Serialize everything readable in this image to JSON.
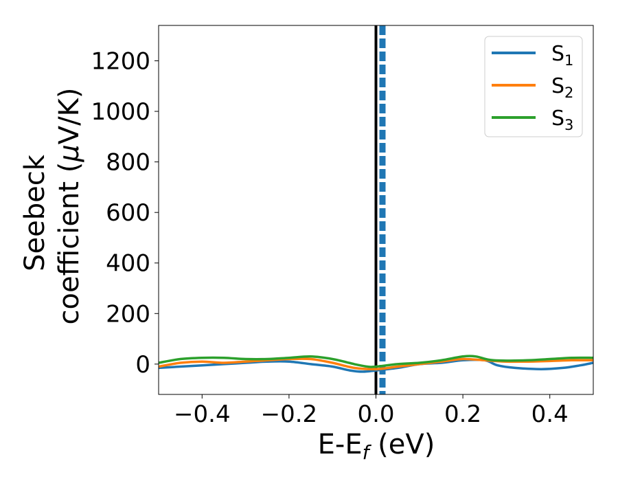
{
  "chart_data": {
    "type": "line",
    "xlabel": "E-E",
    "xlabel_sub": "f",
    "xlabel_unit": " (eV)",
    "ylabel_line1": "Seebeck",
    "ylabel_line2_pre": "coefficient  (",
    "ylabel_line2_mu": "μ",
    "ylabel_line2_post": "V/K)",
    "xlim": [
      -0.5,
      0.5
    ],
    "ylim": [
      -120,
      1340
    ],
    "x_ticks": [
      -0.4,
      -0.2,
      0.0,
      0.2,
      0.4
    ],
    "x_tick_labels": [
      "−0.4",
      "−0.2",
      "0.0",
      "0.2",
      "0.4"
    ],
    "y_ticks": [
      0,
      200,
      400,
      600,
      800,
      1000,
      1200
    ],
    "y_tick_labels": [
      "0",
      "200",
      "400",
      "600",
      "800",
      "1000",
      "1200"
    ],
    "grid": false,
    "legend_position": "top-right",
    "vertical_lines": [
      {
        "x": 0.0,
        "style": "solid",
        "color": "#000000"
      },
      {
        "x": 0.015,
        "style": "dashed",
        "color": "#1f77b4"
      }
    ],
    "series": [
      {
        "name": "S",
        "subscript": "1",
        "color": "#1f77b4",
        "x": [
          -0.5,
          -0.45,
          -0.4,
          -0.35,
          -0.3,
          -0.25,
          -0.2,
          -0.15,
          -0.1,
          -0.06,
          -0.03,
          0.0,
          0.05,
          0.1,
          0.15,
          0.2,
          0.25,
          0.28,
          0.32,
          0.38,
          0.43,
          0.47,
          0.5
        ],
        "y": [
          -15,
          -10,
          -5,
          0,
          5,
          10,
          10,
          0,
          -10,
          -25,
          -30,
          -25,
          -15,
          0,
          5,
          15,
          15,
          -5,
          -15,
          -20,
          -15,
          -5,
          5
        ]
      },
      {
        "name": "S",
        "subscript": "2",
        "color": "#ff7f0e",
        "x": [
          -0.5,
          -0.45,
          -0.4,
          -0.35,
          -0.3,
          -0.25,
          -0.2,
          -0.15,
          -0.1,
          -0.05,
          0.0,
          0.05,
          0.1,
          0.15,
          0.2,
          0.25,
          0.3,
          0.35,
          0.4,
          0.45,
          0.5
        ],
        "y": [
          -10,
          5,
          10,
          5,
          10,
          15,
          20,
          20,
          5,
          -15,
          -20,
          -10,
          0,
          10,
          20,
          15,
          10,
          10,
          12,
          15,
          15
        ]
      },
      {
        "name": "S",
        "subscript": "3",
        "color": "#2ca02c",
        "x": [
          -0.5,
          -0.45,
          -0.4,
          -0.35,
          -0.3,
          -0.25,
          -0.2,
          -0.15,
          -0.1,
          -0.05,
          -0.02,
          0.0,
          0.05,
          0.1,
          0.15,
          0.2,
          0.23,
          0.27,
          0.35,
          0.4,
          0.45,
          0.5
        ],
        "y": [
          5,
          20,
          25,
          25,
          20,
          20,
          25,
          30,
          20,
          0,
          -10,
          -10,
          0,
          5,
          15,
          30,
          30,
          15,
          15,
          20,
          25,
          25
        ]
      }
    ]
  }
}
